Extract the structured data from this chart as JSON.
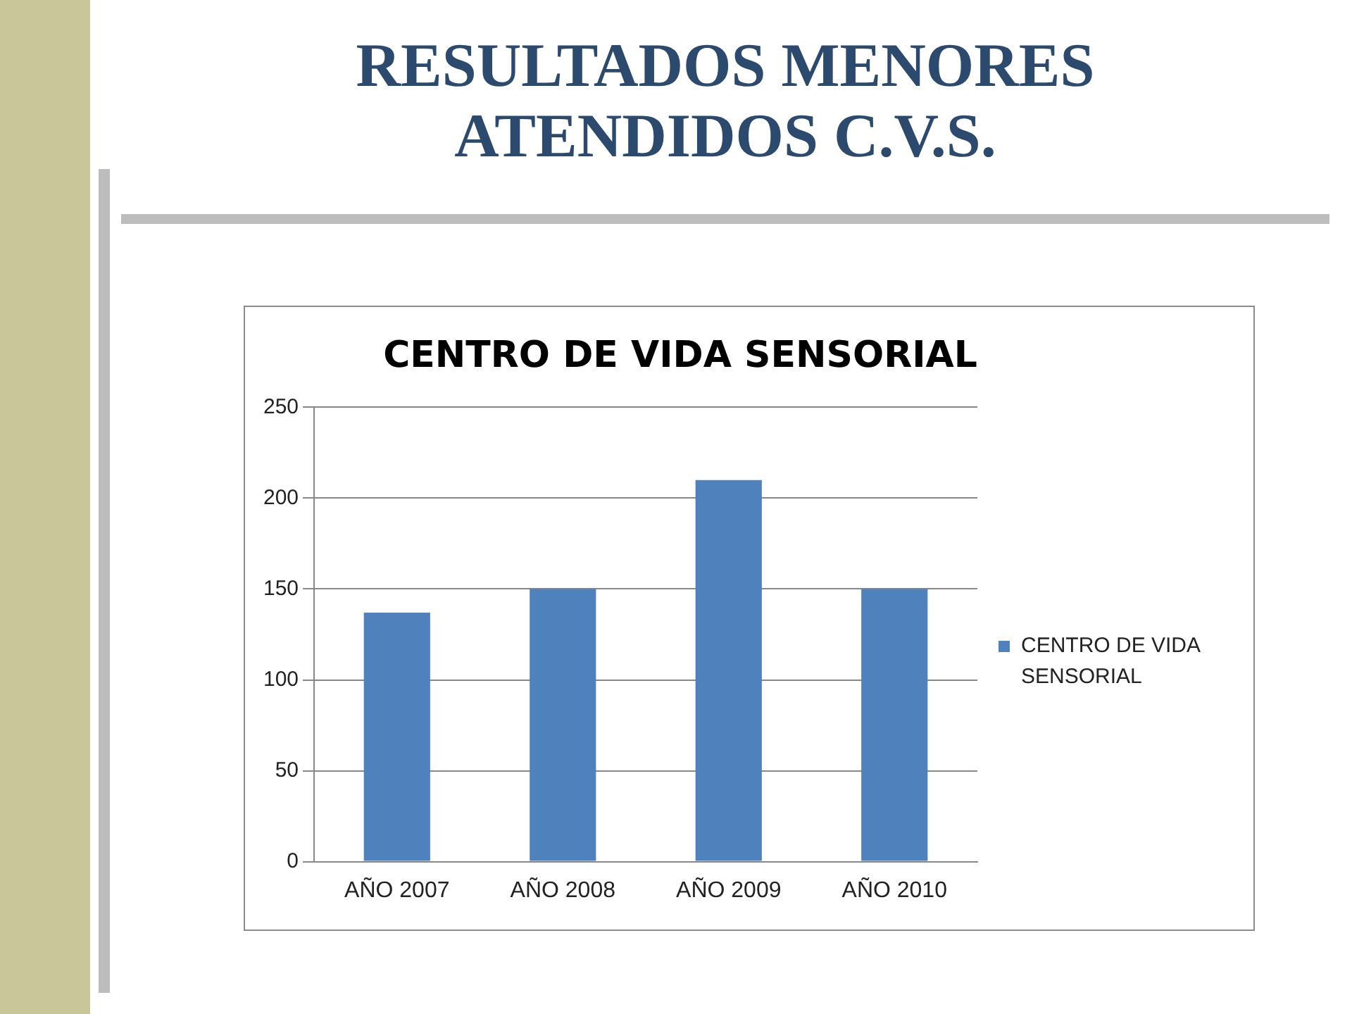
{
  "chart_data": {
    "type": "bar",
    "title": "RESULTADOS MENORES ATENDIDOS C.V.S.",
    "subtitle": "CENTRO DE VIDA SENSORIAL",
    "categories": [
      "AÑO 2007",
      "AÑO 2008",
      "AÑO 2009",
      "AÑO 2010"
    ],
    "series": [
      {
        "name": "CENTRO DE VIDA SENSORIAL",
        "color": "#4f81bd",
        "values": [
          137,
          150,
          210,
          150
        ]
      }
    ],
    "ylim": [
      0,
      250
    ],
    "yticks": [
      0,
      50,
      100,
      150,
      200,
      250
    ],
    "grid": "y",
    "legend": "right"
  }
}
